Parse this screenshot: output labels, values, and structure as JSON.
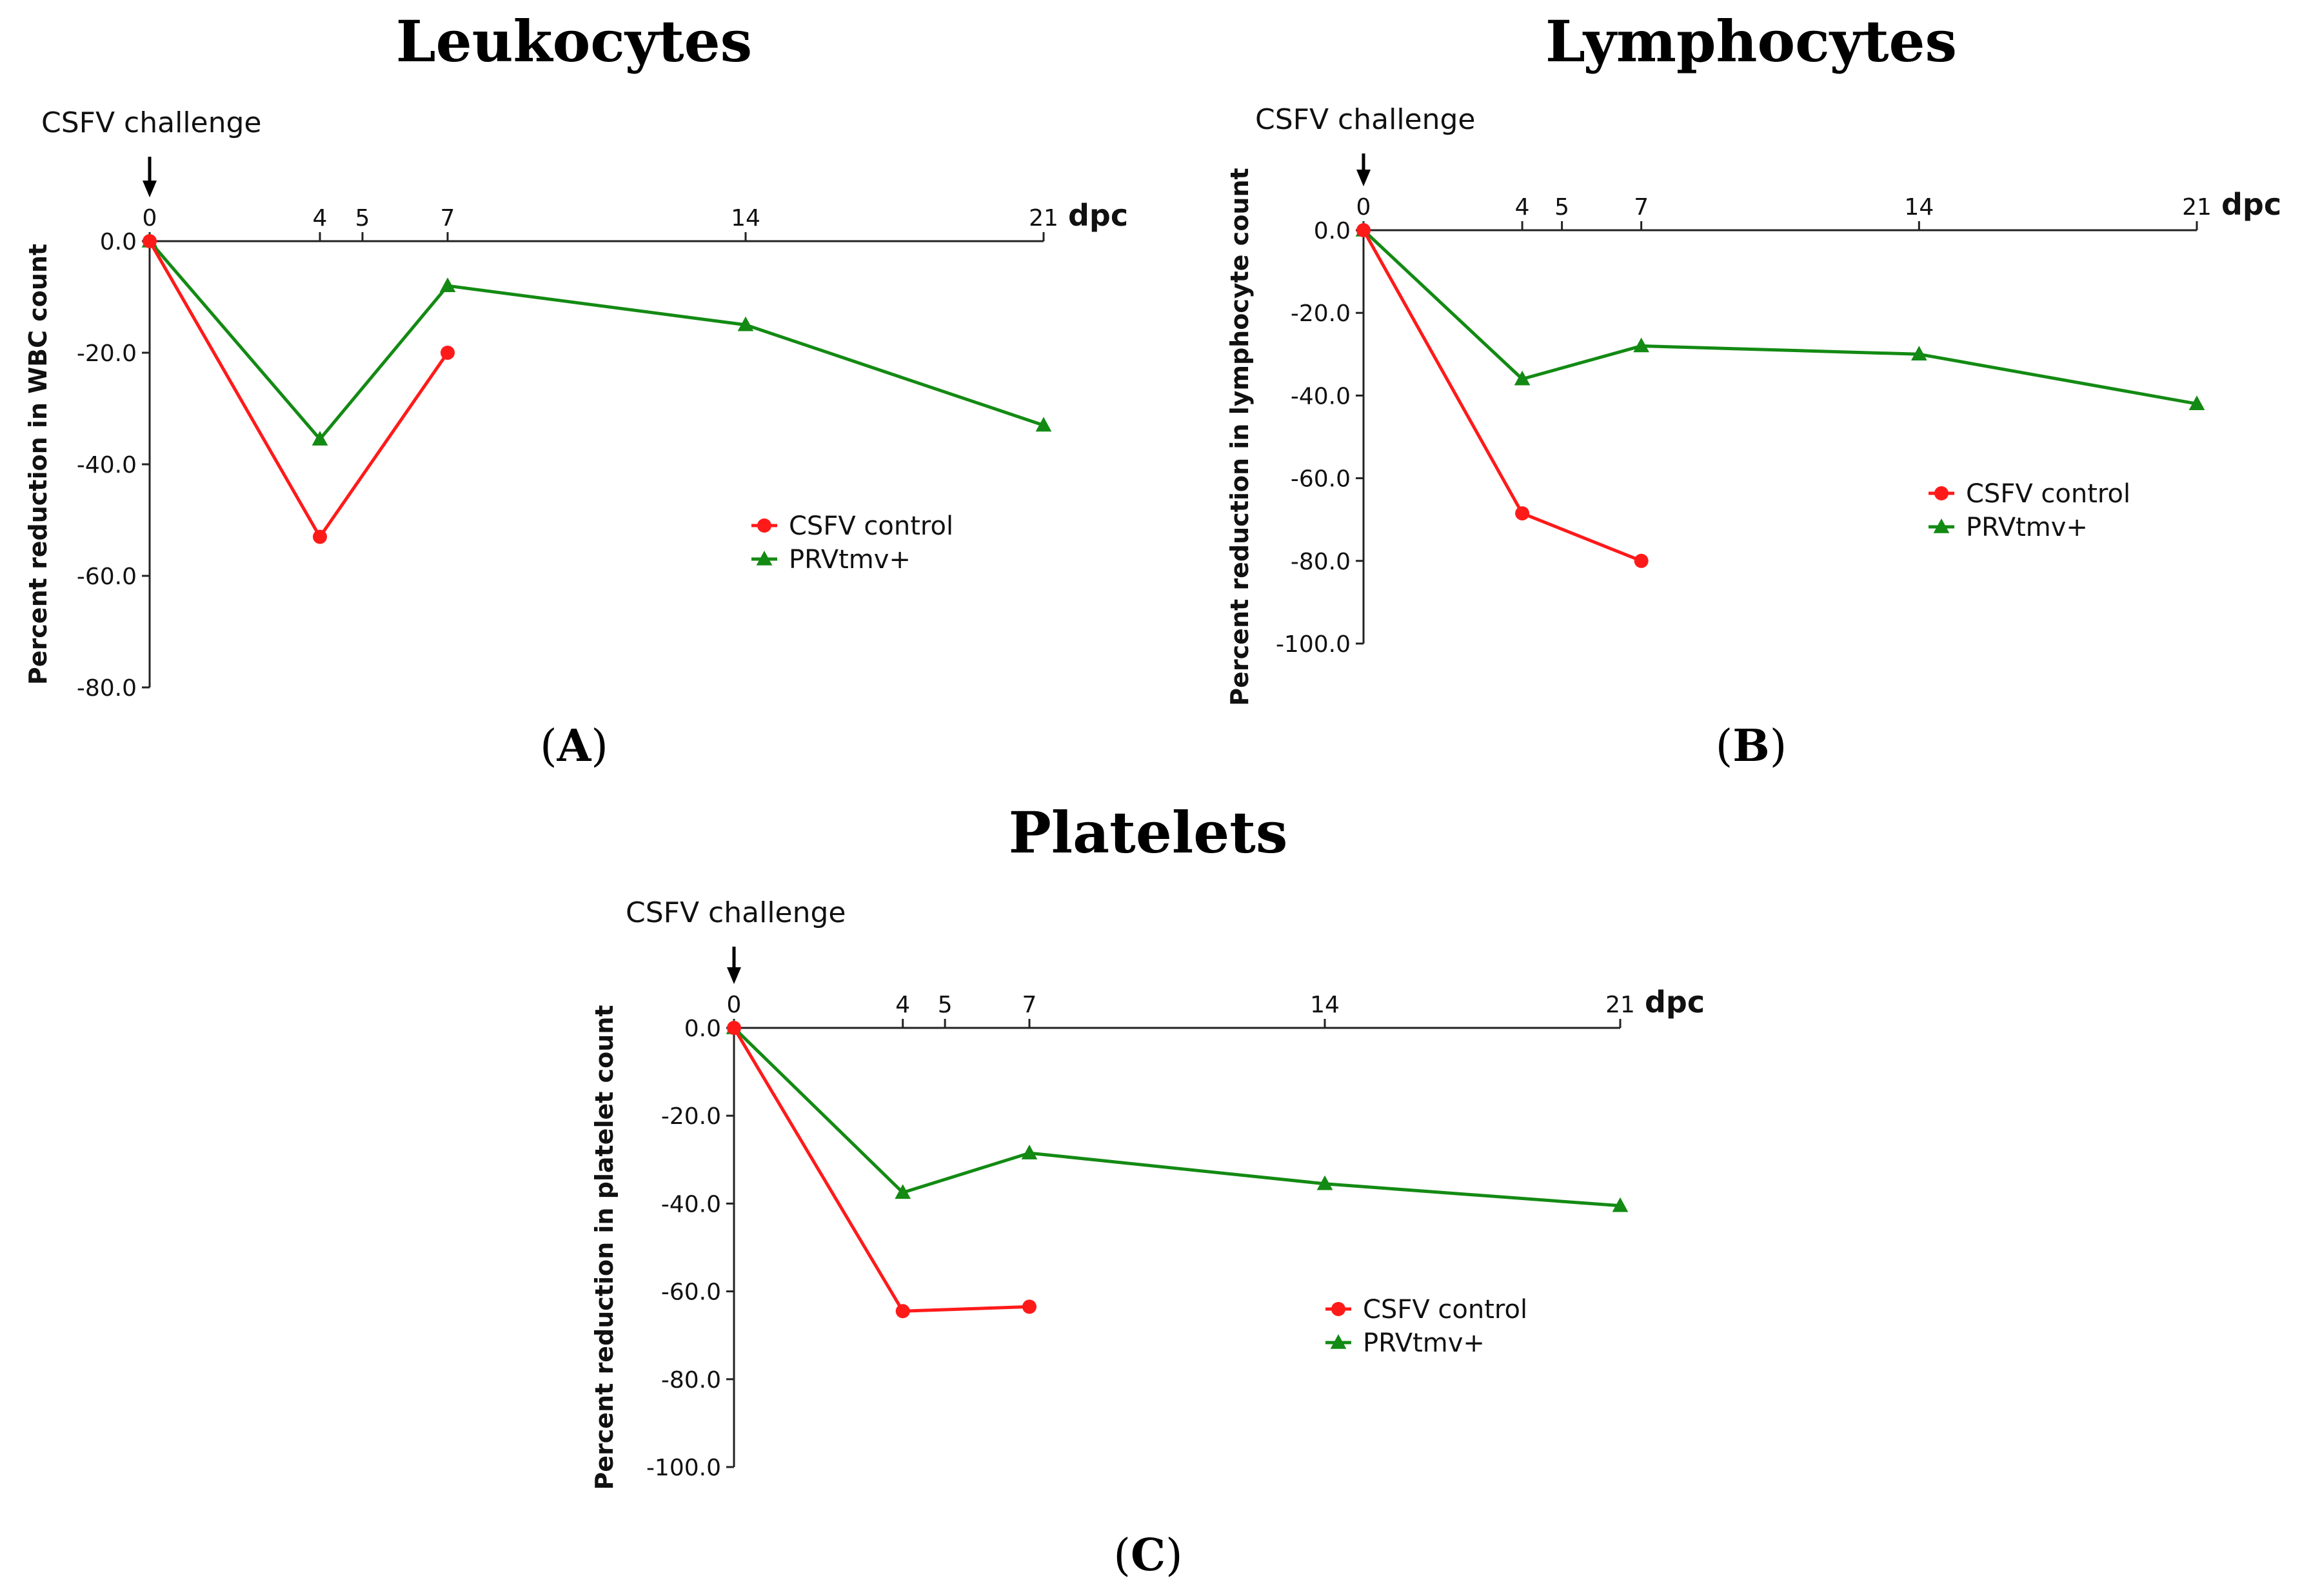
{
  "chart_data": [
    {
      "type": "line",
      "id": "A",
      "title": "Leukocytes",
      "panel_label": "A",
      "annotation": "CSFV challenge",
      "xlabel": "dpc",
      "ylabel": "Percent reduction in WBC count",
      "x_ticks": [
        0,
        4,
        5,
        7,
        14,
        21
      ],
      "x_tick_labels": [
        "0",
        "4",
        "5",
        "7",
        "14",
        "21"
      ],
      "xlim": [
        0,
        21
      ],
      "ylim": [
        -80,
        0
      ],
      "y_ticks": [
        0,
        -20,
        -40,
        -60,
        -80
      ],
      "y_tick_labels": [
        "0.0",
        "-20.0",
        "-40.0",
        "-60.0",
        "-80.0"
      ],
      "series": [
        {
          "name": "CSFV control",
          "color": "#ff1a1a",
          "marker": "circle",
          "x": [
            0,
            4,
            7
          ],
          "values": [
            0,
            -53,
            -20
          ]
        },
        {
          "name": "PRVtmv+",
          "color": "#138a13",
          "marker": "triangle",
          "x": [
            0,
            4,
            7,
            14,
            21
          ],
          "values": [
            0,
            -35.5,
            -8,
            -15,
            -33
          ]
        }
      ],
      "legend": "middle-right"
    },
    {
      "type": "line",
      "id": "B",
      "title": "Lymphocytes",
      "panel_label": "B",
      "annotation": "CSFV challenge",
      "xlabel": "dpc",
      "ylabel": "Percent reduction in lymphocyte count",
      "x_ticks": [
        0,
        4,
        5,
        7,
        14,
        21
      ],
      "x_tick_labels": [
        "0",
        "4",
        "5",
        "7",
        "14",
        "21"
      ],
      "xlim": [
        0,
        21
      ],
      "ylim": [
        -100,
        0
      ],
      "y_ticks": [
        0,
        -20,
        -40,
        -60,
        -80,
        -100
      ],
      "y_tick_labels": [
        "0.0",
        "-20.0",
        "-40.0",
        "-60.0",
        "-80.0",
        "-100.0"
      ],
      "series": [
        {
          "name": "CSFV control",
          "color": "#ff1a1a",
          "marker": "circle",
          "x": [
            0,
            4,
            7
          ],
          "values": [
            0,
            -68.5,
            -80
          ]
        },
        {
          "name": "PRVtmv+",
          "color": "#138a13",
          "marker": "triangle",
          "x": [
            0,
            4,
            7,
            14,
            21
          ],
          "values": [
            0,
            -36,
            -28,
            -30,
            -42
          ]
        }
      ],
      "legend": "middle-right"
    },
    {
      "type": "line",
      "id": "C",
      "title": "Platelets",
      "panel_label": "C",
      "annotation": "CSFV challenge",
      "xlabel": "dpc",
      "ylabel": "Percent reduction in platelet count",
      "x_ticks": [
        0,
        4,
        5,
        7,
        14,
        21
      ],
      "x_tick_labels": [
        "0",
        "4",
        "5",
        "7",
        "14",
        "21"
      ],
      "xlim": [
        0,
        21
      ],
      "ylim": [
        -100,
        0
      ],
      "y_ticks": [
        0,
        -20,
        -40,
        -60,
        -80,
        -100
      ],
      "y_tick_labels": [
        "0.0",
        "-20.0",
        "-40.0",
        "-60.0",
        "-80.0",
        "-100.0"
      ],
      "series": [
        {
          "name": "CSFV control",
          "color": "#ff1a1a",
          "marker": "circle",
          "x": [
            0,
            4,
            7
          ],
          "values": [
            0,
            -64.5,
            -63.5
          ]
        },
        {
          "name": "PRVtmv+",
          "color": "#138a13",
          "marker": "triangle",
          "x": [
            0,
            4,
            7,
            14,
            21
          ],
          "values": [
            0,
            -37.5,
            -28.5,
            -35.5,
            -40.5
          ]
        }
      ],
      "legend": "middle-right"
    }
  ]
}
